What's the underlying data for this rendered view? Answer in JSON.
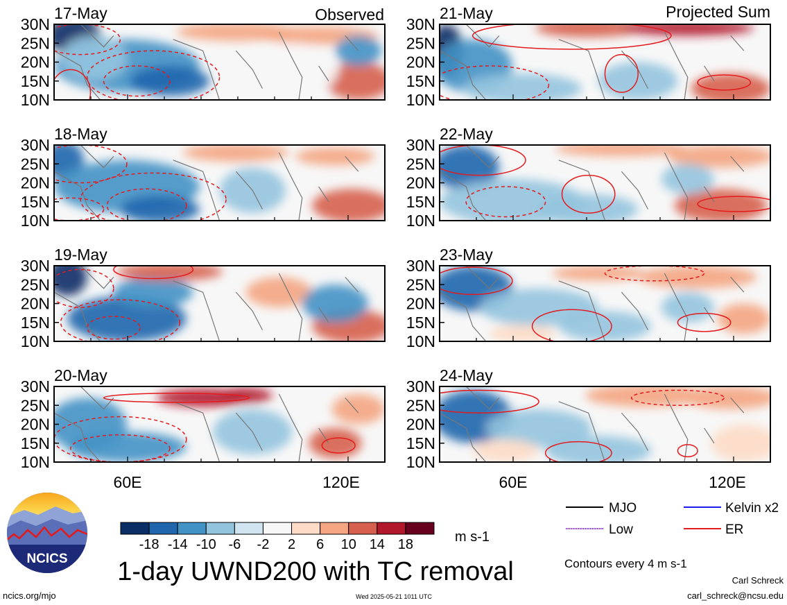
{
  "figure": {
    "title": "1-day UWND200 with TC removal",
    "units": "m s-1",
    "contour_note": "Contours every 4 m s-1",
    "author": "Carl Schreck",
    "email": "carl_schreck@ncsu.edu",
    "website": "ncics.org/mjo",
    "timestamp": "Wed 2025-05-21 1011 UTC",
    "logo_text": "NCICS",
    "column_labels": [
      "Observed",
      "Projected Sum"
    ],
    "x_tick_labels": [
      "60E",
      "120E"
    ],
    "y_tick_labels": [
      "30N",
      "25N",
      "20N",
      "15N",
      "10N"
    ],
    "colorbar_labels": [
      "-18",
      "-14",
      "-10",
      "-6",
      "-2",
      "2",
      "6",
      "10",
      "14",
      "18"
    ],
    "colorbar_colors": [
      "#0a2f66",
      "#1f66ad",
      "#4392c5",
      "#93c4de",
      "#d1e5f0",
      "#f7f7f7",
      "#fddbc7",
      "#f4a582",
      "#d6604d",
      "#b2182b",
      "#67001f"
    ],
    "legend": [
      {
        "label": "MJO",
        "color": "#000000"
      },
      {
        "label": "Kelvin x2",
        "color": "#1a1aee"
      },
      {
        "label": "Low",
        "color": "#8a2be2"
      },
      {
        "label": "ER",
        "color": "#e41a1c"
      }
    ]
  },
  "chart_data": {
    "type": "heatmap",
    "variable": "UWND200",
    "x_axis": {
      "range_deg_east": [
        40,
        130
      ],
      "ticks": [
        "60E",
        "120E"
      ]
    },
    "y_axis": {
      "range_deg_north": [
        10,
        30
      ],
      "ticks": [
        "30N",
        "25N",
        "20N",
        "15N",
        "10N"
      ]
    },
    "color_levels": [
      -18,
      -14,
      -10,
      -6,
      -2,
      2,
      6,
      10,
      14,
      18
    ],
    "panels": [
      {
        "date": "17-May",
        "column": "Observed"
      },
      {
        "date": "18-May",
        "column": "Observed"
      },
      {
        "date": "19-May",
        "column": "Observed"
      },
      {
        "date": "20-May",
        "column": "Observed"
      },
      {
        "date": "21-May",
        "column": "Projected Sum"
      },
      {
        "date": "22-May",
        "column": "Projected Sum"
      },
      {
        "date": "23-May",
        "column": "Projected Sum"
      },
      {
        "date": "24-May",
        "column": "Projected Sum"
      }
    ]
  }
}
